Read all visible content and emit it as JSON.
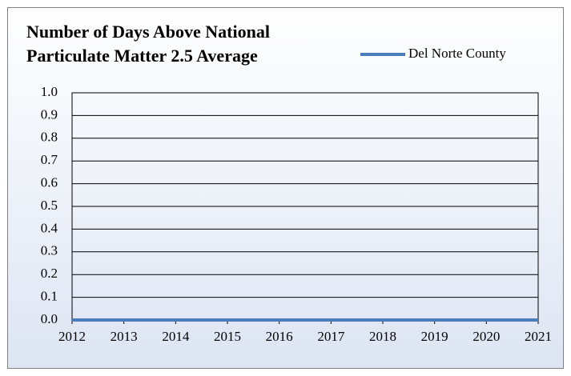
{
  "chart_data": {
    "type": "line",
    "title": [
      "Number of Days Above National",
      "Particulate Matter 2.5 Average"
    ],
    "x": [
      2012,
      2013,
      2014,
      2015,
      2016,
      2017,
      2018,
      2019,
      2020,
      2021
    ],
    "series": [
      {
        "name": "Del Norte County",
        "color": "#4a7ebb",
        "values": [
          0,
          0,
          0,
          0,
          0,
          0,
          0,
          0,
          0,
          0
        ]
      }
    ],
    "xlim": [
      2012,
      2021
    ],
    "xticks": [
      2012,
      2013,
      2014,
      2015,
      2016,
      2017,
      2018,
      2019,
      2020,
      2021
    ],
    "ylim": [
      0,
      1
    ],
    "yticks": [
      {
        "value": 0,
        "label": "0.0"
      },
      0.1,
      0.2,
      0.3,
      0.4,
      0.5,
      0.6,
      0.7,
      0.8,
      0.9,
      {
        "value": 1,
        "label": "1.0"
      }
    ],
    "grid": true,
    "legend": "top-right"
  }
}
